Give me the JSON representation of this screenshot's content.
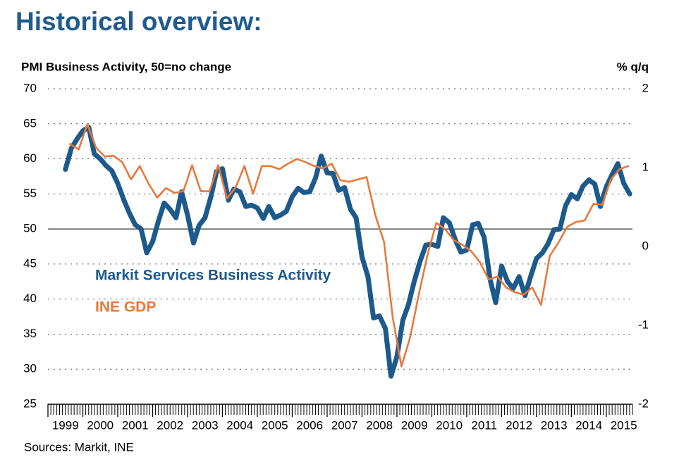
{
  "chart_data": {
    "type": "line",
    "title": "Historical overview:",
    "y_label": "PMI Business Activity, 50=no change",
    "y2_label": "% q/q",
    "source": "Sources: Markit, INE",
    "xlim": [
      1999,
      2015.75
    ],
    "xticks": [
      1999,
      2000,
      2001,
      2002,
      2003,
      2004,
      2005,
      2006,
      2007,
      2008,
      2009,
      2010,
      2011,
      2012,
      2013,
      2014,
      2015
    ],
    "ylim": [
      25,
      70
    ],
    "yticks": [
      25,
      30,
      35,
      40,
      45,
      50,
      55,
      60,
      65,
      70
    ],
    "y2lim": [
      -2,
      2
    ],
    "y2ticks": [
      -2,
      -1,
      0,
      1,
      2
    ],
    "grid": true,
    "baseline": 50,
    "series": [
      {
        "name": "Markit Services Business Activity",
        "color": "#1d5a8c",
        "x": [
          1999.5,
          1999.67,
          1999.83,
          2000,
          2000.17,
          2000.33,
          2000.5,
          2000.67,
          2000.83,
          2001,
          2001.17,
          2001.33,
          2001.5,
          2001.67,
          2001.83,
          2002,
          2002.17,
          2002.33,
          2002.5,
          2002.67,
          2002.83,
          2003,
          2003.17,
          2003.33,
          2003.5,
          2003.67,
          2003.83,
          2004,
          2004.17,
          2004.33,
          2004.5,
          2004.67,
          2004.83,
          2005,
          2005.17,
          2005.33,
          2005.5,
          2005.67,
          2005.83,
          2006,
          2006.17,
          2006.33,
          2006.5,
          2006.67,
          2006.83,
          2007,
          2007.17,
          2007.33,
          2007.5,
          2007.67,
          2007.83,
          2008,
          2008.17,
          2008.33,
          2008.5,
          2008.67,
          2008.83,
          2009,
          2009.17,
          2009.33,
          2009.5,
          2009.67,
          2009.83,
          2010,
          2010.17,
          2010.33,
          2010.5,
          2010.67,
          2010.83,
          2011,
          2011.17,
          2011.33,
          2011.5,
          2011.67,
          2011.83,
          2012,
          2012.17,
          2012.33,
          2012.5,
          2012.67,
          2012.83,
          2013,
          2013.17,
          2013.33,
          2013.5,
          2013.67,
          2013.83,
          2014,
          2014.17,
          2014.33,
          2014.5,
          2014.67,
          2014.83,
          2015,
          2015.17,
          2015.33,
          2015.5,
          2015.67
        ],
        "values": [
          58.5,
          61.5,
          62.8,
          64,
          64.5,
          60.7,
          60,
          59,
          58.3,
          56.5,
          54.2,
          52.3,
          50.6,
          50,
          46.6,
          48.2,
          51.2,
          53.7,
          52.8,
          51.6,
          55.3,
          52,
          48,
          50.5,
          51.6,
          54.6,
          58.2,
          58.6,
          54.1,
          55.7,
          55.3,
          53.2,
          53.4,
          53,
          51.5,
          53.2,
          51.6,
          52,
          52.5,
          54.6,
          55.8,
          55.2,
          55.3,
          57.3,
          60.4,
          58,
          57.9,
          55.5,
          55.9,
          52.8,
          51.6,
          46,
          43.2,
          37.3,
          37.6,
          35.8,
          29,
          31.8,
          37,
          39.2,
          42.6,
          45.5,
          47.7,
          47.8,
          47.5,
          51.6,
          50.9,
          48.5,
          46.7,
          47,
          50.6,
          50.8,
          48.8,
          42.8,
          39.5,
          44.7,
          42.5,
          41.5,
          43.2,
          40.5,
          43.2,
          45.8,
          46.6,
          47.9,
          49.9,
          50,
          53.3,
          54.9,
          54.3,
          56.1,
          57,
          56.4,
          53.2,
          56,
          57.8,
          59.3,
          56.5,
          55
        ]
      },
      {
        "name": "INE GDP",
        "color": "#e8793a",
        "axis": "y2",
        "x": [
          1999.63,
          1999.88,
          2000.13,
          2000.38,
          2000.63,
          2000.88,
          2001.13,
          2001.38,
          2001.63,
          2001.88,
          2002.13,
          2002.38,
          2002.63,
          2002.88,
          2003.13,
          2003.38,
          2003.63,
          2003.88,
          2004.13,
          2004.38,
          2004.63,
          2004.88,
          2005.13,
          2005.38,
          2005.63,
          2005.88,
          2006.13,
          2006.38,
          2006.63,
          2006.88,
          2007.13,
          2007.38,
          2007.63,
          2007.88,
          2008.13,
          2008.38,
          2008.63,
          2008.88,
          2009.13,
          2009.38,
          2009.63,
          2009.88,
          2010.13,
          2010.38,
          2010.63,
          2010.88,
          2011.13,
          2011.38,
          2011.63,
          2011.88,
          2012.13,
          2012.38,
          2012.63,
          2012.88,
          2013.13,
          2013.38,
          2013.63,
          2013.88,
          2014.13,
          2014.38,
          2014.63,
          2014.88,
          2015.13,
          2015.38,
          2015.63
        ],
        "values": [
          1.3,
          1.23,
          1.55,
          1.25,
          1.14,
          1.15,
          1.07,
          0.85,
          1.02,
          0.8,
          0.62,
          0.74,
          0.68,
          0.7,
          1.03,
          0.7,
          0.7,
          1.03,
          0.61,
          0.75,
          1.02,
          0.67,
          1.02,
          1.02,
          0.98,
          1.05,
          1.11,
          1.07,
          1.02,
          0.99,
          1.05,
          0.84,
          0.82,
          0.85,
          0.88,
          0.4,
          0.06,
          -0.9,
          -1.52,
          -1.15,
          -0.6,
          -0.1,
          0.3,
          0.22,
          0.08,
          0.02,
          -0.06,
          -0.2,
          -0.42,
          -0.38,
          -0.52,
          -0.58,
          -0.61,
          -0.52,
          -0.74,
          -0.12,
          0.05,
          0.25,
          0.31,
          0.33,
          0.54,
          0.53,
          0.85,
          0.98,
          1.02
        ]
      }
    ]
  }
}
